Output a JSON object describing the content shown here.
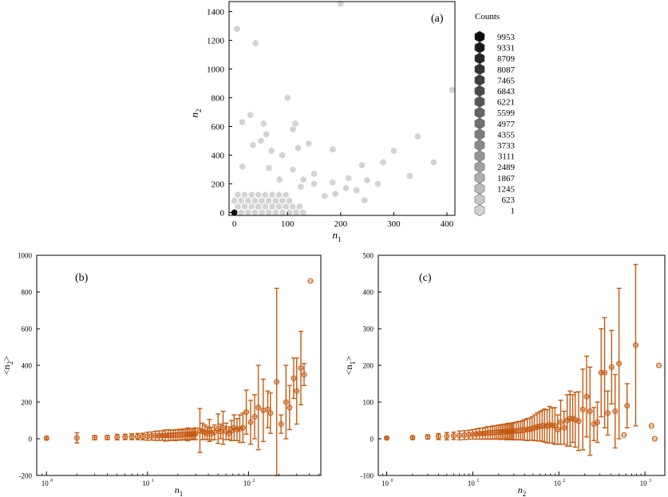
{
  "colors": {
    "errorbar": "#c55a11",
    "hex_dark": "#0d0d0d",
    "hex_light": "#d3d3d3",
    "axis": "#000000"
  },
  "chart_data": [
    {
      "type": "hexbin",
      "panel_label": "(a)",
      "xlabel": "n",
      "xlabel_sub": "1",
      "ylabel": "n",
      "ylabel_sub": "2",
      "xlim": [
        -10,
        415
      ],
      "ylim": [
        -20,
        1470
      ],
      "xticks": [
        "0",
        "100",
        "200",
        "300",
        "400"
      ],
      "xtick_values": [
        0,
        100,
        200,
        300,
        400
      ],
      "yticks": [
        "0",
        "200",
        "400",
        "600",
        "800",
        "1000",
        "1200",
        "1400"
      ],
      "ytick_values": [
        0,
        200,
        400,
        600,
        800,
        1000,
        1200,
        1400
      ],
      "legend_title": "Counts",
      "legend_levels": [
        "9953",
        "9331",
        "8709",
        "8087",
        "7465",
        "6843",
        "6221",
        "5599",
        "4977",
        "4355",
        "3733",
        "3111",
        "2489",
        "1867",
        "1245",
        "623",
        "1"
      ],
      "dense_region": {
        "x": [
          0,
          140
        ],
        "y": [
          0,
          160
        ],
        "count": 1
      },
      "points": [
        {
          "x": 200,
          "y": 1455,
          "count": 1
        },
        {
          "x": 5,
          "y": 1280,
          "count": 1
        },
        {
          "x": 40,
          "y": 1180,
          "count": 1
        },
        {
          "x": 410,
          "y": 855,
          "count": 1
        },
        {
          "x": 100,
          "y": 800,
          "count": 1
        },
        {
          "x": 15,
          "y": 630,
          "count": 1
        },
        {
          "x": 60,
          "y": 545,
          "count": 1
        },
        {
          "x": 30,
          "y": 680,
          "count": 1
        },
        {
          "x": 55,
          "y": 620,
          "count": 1
        },
        {
          "x": 115,
          "y": 620,
          "count": 1
        },
        {
          "x": 110,
          "y": 580,
          "count": 1
        },
        {
          "x": 345,
          "y": 530,
          "count": 1
        },
        {
          "x": 50,
          "y": 500,
          "count": 1
        },
        {
          "x": 35,
          "y": 470,
          "count": 1
        },
        {
          "x": 140,
          "y": 480,
          "count": 1
        },
        {
          "x": 300,
          "y": 430,
          "count": 1
        },
        {
          "x": 185,
          "y": 440,
          "count": 1
        },
        {
          "x": 120,
          "y": 450,
          "count": 1
        },
        {
          "x": 70,
          "y": 430,
          "count": 1
        },
        {
          "x": 90,
          "y": 400,
          "count": 1
        },
        {
          "x": 280,
          "y": 350,
          "count": 1
        },
        {
          "x": 240,
          "y": 330,
          "count": 1
        },
        {
          "x": 375,
          "y": 350,
          "count": 1
        },
        {
          "x": 15,
          "y": 320,
          "count": 1
        },
        {
          "x": 65,
          "y": 310,
          "count": 1
        },
        {
          "x": 110,
          "y": 300,
          "count": 1
        },
        {
          "x": 150,
          "y": 270,
          "count": 1
        },
        {
          "x": 270,
          "y": 200,
          "count": 1
        },
        {
          "x": 215,
          "y": 240,
          "count": 1
        },
        {
          "x": 330,
          "y": 255,
          "count": 1
        },
        {
          "x": 250,
          "y": 225,
          "count": 1
        },
        {
          "x": 185,
          "y": 210,
          "count": 1
        },
        {
          "x": 210,
          "y": 170,
          "count": 1
        },
        {
          "x": 230,
          "y": 155,
          "count": 1
        },
        {
          "x": 245,
          "y": 85,
          "count": 1
        },
        {
          "x": 190,
          "y": 130,
          "count": 1
        },
        {
          "x": 170,
          "y": 115,
          "count": 1
        },
        {
          "x": 150,
          "y": 200,
          "count": 1
        },
        {
          "x": 130,
          "y": 230,
          "count": 1
        },
        {
          "x": 85,
          "y": 230,
          "count": 1
        },
        {
          "x": 125,
          "y": 180,
          "count": 1
        },
        {
          "x": 0,
          "y": 0,
          "count": 9953
        }
      ]
    },
    {
      "type": "scatter_errorbar",
      "panel_label": "(b)",
      "xscale": "log",
      "xlabel": "n",
      "xlabel_sub": "1",
      "ylabel": "<n",
      "ylabel_sub": "2",
      "ylabel_end": ">",
      "xlim": [
        0.8,
        520
      ],
      "ylim": [
        -200,
        1000
      ],
      "xticks": [
        "10",
        "10",
        "10"
      ],
      "xtick_exps": [
        "0",
        "1",
        "2"
      ],
      "xtick_values": [
        1,
        10,
        100
      ],
      "yticks": [
        "-200",
        "0",
        "200",
        "400",
        "600",
        "800",
        "1000"
      ],
      "ytick_values": [
        -200,
        0,
        200,
        400,
        600,
        800,
        1000
      ],
      "points": [
        {
          "x": 1,
          "y": 3,
          "err": 8
        },
        {
          "x": 2,
          "y": 5,
          "err": 28
        },
        {
          "x": 3,
          "y": 6,
          "err": 12
        },
        {
          "x": 4,
          "y": 7,
          "err": 12
        },
        {
          "x": 5,
          "y": 9,
          "err": 15
        },
        {
          "x": 6,
          "y": 10,
          "err": 15
        },
        {
          "x": 7,
          "y": 11,
          "err": 16
        },
        {
          "x": 8,
          "y": 12,
          "err": 17
        },
        {
          "x": 9,
          "y": 12,
          "err": 18
        },
        {
          "x": 10,
          "y": 14,
          "err": 22
        },
        {
          "x": 11,
          "y": 15,
          "err": 22
        },
        {
          "x": 12,
          "y": 16,
          "err": 25
        },
        {
          "x": 13,
          "y": 17,
          "err": 26
        },
        {
          "x": 14,
          "y": 18,
          "err": 25
        },
        {
          "x": 15,
          "y": 18,
          "err": 30
        },
        {
          "x": 16,
          "y": 19,
          "err": 30
        },
        {
          "x": 17,
          "y": 19,
          "err": 28
        },
        {
          "x": 18,
          "y": 20,
          "err": 28
        },
        {
          "x": 19,
          "y": 20,
          "err": 30
        },
        {
          "x": 20,
          "y": 21,
          "err": 28
        },
        {
          "x": 21,
          "y": 22,
          "err": 30
        },
        {
          "x": 22,
          "y": 22,
          "err": 28
        },
        {
          "x": 23,
          "y": 23,
          "err": 30
        },
        {
          "x": 24,
          "y": 24,
          "err": 28
        },
        {
          "x": 25,
          "y": 24,
          "err": 35
        },
        {
          "x": 26,
          "y": 25,
          "err": 30
        },
        {
          "x": 27,
          "y": 25,
          "err": 30
        },
        {
          "x": 28,
          "y": 26,
          "err": 30
        },
        {
          "x": 29,
          "y": 26,
          "err": 30
        },
        {
          "x": 30,
          "y": 27,
          "err": 32
        },
        {
          "x": 33,
          "y": 45,
          "err": 120
        },
        {
          "x": 35,
          "y": 40,
          "err": 45
        },
        {
          "x": 37,
          "y": 35,
          "err": 40
        },
        {
          "x": 39,
          "y": 30,
          "err": 35
        },
        {
          "x": 41,
          "y": 45,
          "err": 60
        },
        {
          "x": 43,
          "y": 28,
          "err": 35
        },
        {
          "x": 46,
          "y": 35,
          "err": 40
        },
        {
          "x": 50,
          "y": 55,
          "err": 80
        },
        {
          "x": 53,
          "y": 40,
          "err": 40
        },
        {
          "x": 56,
          "y": 60,
          "err": 90
        },
        {
          "x": 60,
          "y": 40,
          "err": 45
        },
        {
          "x": 64,
          "y": 30,
          "err": 35
        },
        {
          "x": 68,
          "y": 45,
          "err": 55
        },
        {
          "x": 72,
          "y": 60,
          "err": 70
        },
        {
          "x": 77,
          "y": 50,
          "err": 60
        },
        {
          "x": 82,
          "y": 55,
          "err": 75
        },
        {
          "x": 88,
          "y": 60,
          "err": 80
        },
        {
          "x": 95,
          "y": 145,
          "err": 120
        },
        {
          "x": 105,
          "y": 90,
          "err": 120
        },
        {
          "x": 115,
          "y": 120,
          "err": 120
        },
        {
          "x": 125,
          "y": 170,
          "err": 230
        },
        {
          "x": 140,
          "y": 155,
          "err": 170
        },
        {
          "x": 155,
          "y": 160,
          "err": 100
        },
        {
          "x": 165,
          "y": 140,
          "err": 110
        },
        {
          "x": 190,
          "y": 310,
          "err": 510
        },
        {
          "x": 210,
          "y": 80,
          "err": 50
        },
        {
          "x": 235,
          "y": 200,
          "err": 200
        },
        {
          "x": 255,
          "y": 170,
          "err": 120
        },
        {
          "x": 280,
          "y": 330,
          "err": 110
        },
        {
          "x": 300,
          "y": 260,
          "err": 180
        },
        {
          "x": 330,
          "y": 385,
          "err": 200
        },
        {
          "x": 355,
          "y": 350,
          "err": 60
        },
        {
          "x": 410,
          "y": 860,
          "err": 0
        }
      ]
    },
    {
      "type": "scatter_errorbar",
      "panel_label": "(c)",
      "xscale": "log",
      "xlabel": "n",
      "xlabel_sub": "2",
      "ylabel": "<n",
      "ylabel_sub": "1",
      "ylabel_end": ">",
      "xlim": [
        0.8,
        1700
      ],
      "ylim": [
        -100,
        500
      ],
      "xticks": [
        "10",
        "10",
        "10",
        "10"
      ],
      "xtick_exps": [
        "0",
        "1",
        "2",
        "3"
      ],
      "xtick_values": [
        1,
        10,
        100,
        1000
      ],
      "yticks": [
        "-100",
        "0",
        "100",
        "200",
        "300",
        "400",
        "500"
      ],
      "ytick_values": [
        -100,
        0,
        100,
        200,
        300,
        400,
        500
      ],
      "points": [
        {
          "x": 1,
          "y": 2,
          "err": 3
        },
        {
          "x": 2,
          "y": 3,
          "err": 4
        },
        {
          "x": 3,
          "y": 5,
          "err": 6
        },
        {
          "x": 4,
          "y": 6,
          "err": 8
        },
        {
          "x": 5,
          "y": 7,
          "err": 10
        },
        {
          "x": 6,
          "y": 8,
          "err": 10
        },
        {
          "x": 7,
          "y": 9,
          "err": 12
        },
        {
          "x": 8,
          "y": 10,
          "err": 12
        },
        {
          "x": 9,
          "y": 11,
          "err": 12
        },
        {
          "x": 10,
          "y": 12,
          "err": 13
        },
        {
          "x": 11,
          "y": 13,
          "err": 14
        },
        {
          "x": 12,
          "y": 14,
          "err": 15
        },
        {
          "x": 13,
          "y": 14,
          "err": 15
        },
        {
          "x": 14,
          "y": 15,
          "err": 16
        },
        {
          "x": 15,
          "y": 16,
          "err": 17
        },
        {
          "x": 16,
          "y": 16,
          "err": 17
        },
        {
          "x": 17,
          "y": 17,
          "err": 18
        },
        {
          "x": 18,
          "y": 17,
          "err": 18
        },
        {
          "x": 19,
          "y": 18,
          "err": 18
        },
        {
          "x": 20,
          "y": 18,
          "err": 19
        },
        {
          "x": 21,
          "y": 18,
          "err": 20
        },
        {
          "x": 22,
          "y": 19,
          "err": 20
        },
        {
          "x": 23,
          "y": 19,
          "err": 20
        },
        {
          "x": 24,
          "y": 20,
          "err": 20
        },
        {
          "x": 25,
          "y": 19,
          "err": 22
        },
        {
          "x": 26,
          "y": 20,
          "err": 22
        },
        {
          "x": 27,
          "y": 20,
          "err": 22
        },
        {
          "x": 28,
          "y": 21,
          "err": 22
        },
        {
          "x": 29,
          "y": 20,
          "err": 23
        },
        {
          "x": 30,
          "y": 21,
          "err": 23
        },
        {
          "x": 32,
          "y": 21,
          "err": 24
        },
        {
          "x": 34,
          "y": 22,
          "err": 25
        },
        {
          "x": 36,
          "y": 22,
          "err": 25
        },
        {
          "x": 38,
          "y": 23,
          "err": 26
        },
        {
          "x": 40,
          "y": 24,
          "err": 28
        },
        {
          "x": 43,
          "y": 25,
          "err": 30
        },
        {
          "x": 46,
          "y": 26,
          "err": 30
        },
        {
          "x": 49,
          "y": 28,
          "err": 32
        },
        {
          "x": 52,
          "y": 30,
          "err": 35
        },
        {
          "x": 56,
          "y": 32,
          "err": 38
        },
        {
          "x": 60,
          "y": 34,
          "err": 40
        },
        {
          "x": 64,
          "y": 35,
          "err": 42
        },
        {
          "x": 68,
          "y": 36,
          "err": 45
        },
        {
          "x": 73,
          "y": 34,
          "err": 45
        },
        {
          "x": 78,
          "y": 38,
          "err": 50
        },
        {
          "x": 84,
          "y": 36,
          "err": 48
        },
        {
          "x": 90,
          "y": 35,
          "err": 50
        },
        {
          "x": 97,
          "y": 25,
          "err": 40
        },
        {
          "x": 105,
          "y": 45,
          "err": 60
        },
        {
          "x": 115,
          "y": 30,
          "err": 45
        },
        {
          "x": 125,
          "y": 50,
          "err": 70
        },
        {
          "x": 135,
          "y": 55,
          "err": 75
        },
        {
          "x": 145,
          "y": 55,
          "err": 65
        },
        {
          "x": 155,
          "y": 52,
          "err": 75
        },
        {
          "x": 170,
          "y": 48,
          "err": 80
        },
        {
          "x": 190,
          "y": 80,
          "err": 110
        },
        {
          "x": 210,
          "y": 115,
          "err": 110
        },
        {
          "x": 230,
          "y": 75,
          "err": 120
        },
        {
          "x": 255,
          "y": 40,
          "err": 45
        },
        {
          "x": 280,
          "y": 45,
          "err": 55
        },
        {
          "x": 310,
          "y": 180,
          "err": 120
        },
        {
          "x": 340,
          "y": 180,
          "err": 150
        },
        {
          "x": 370,
          "y": 70,
          "err": 60
        },
        {
          "x": 410,
          "y": 195,
          "err": 100
        },
        {
          "x": 450,
          "y": 75,
          "err": 100
        },
        {
          "x": 500,
          "y": 205,
          "err": 205
        },
        {
          "x": 570,
          "y": 10,
          "err": 0
        },
        {
          "x": 620,
          "y": 90,
          "err": 60
        },
        {
          "x": 780,
          "y": 255,
          "err": 220
        },
        {
          "x": 1190,
          "y": 35,
          "err": 0
        },
        {
          "x": 1300,
          "y": 0,
          "err": 0
        },
        {
          "x": 1450,
          "y": 200,
          "err": 0
        }
      ]
    }
  ]
}
